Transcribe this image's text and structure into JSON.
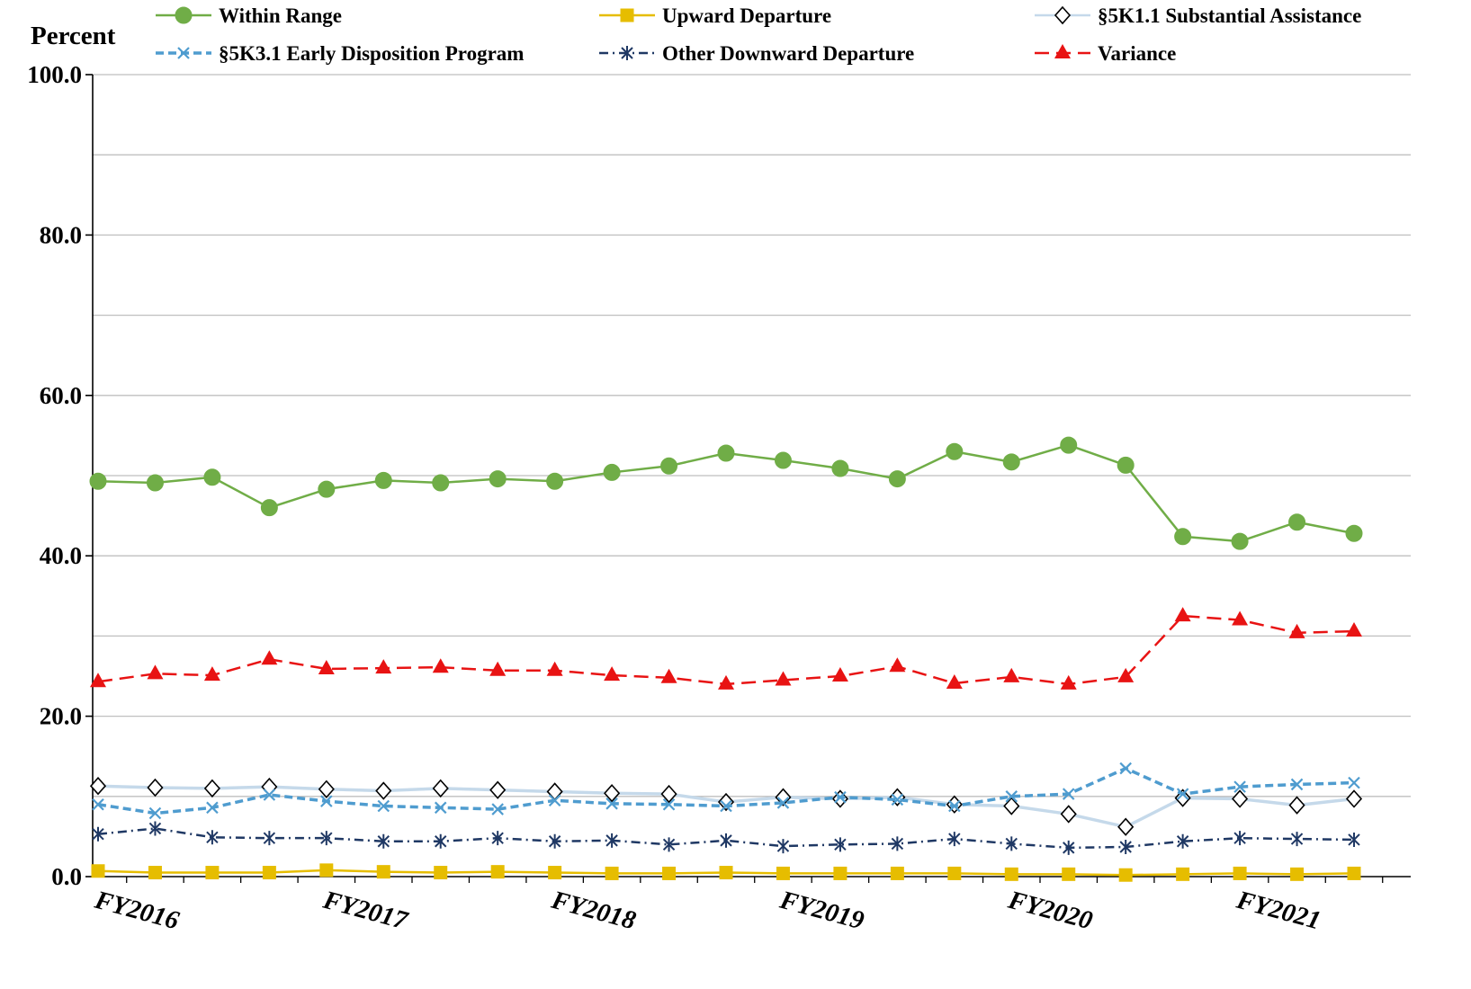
{
  "chart_data": {
    "type": "line",
    "ylabel": "Percent",
    "xlabel": "",
    "title": "",
    "ylim": [
      0,
      100
    ],
    "yticks": [
      0,
      20,
      40,
      60,
      80,
      100
    ],
    "ytick_labels": [
      "0.0",
      "20.0",
      "40.0",
      "60.0",
      "80.0",
      "100.0"
    ],
    "xtick_labels": [
      "FY2016",
      "FY2017",
      "FY2018",
      "FY2019",
      "FY2020",
      "FY2021"
    ],
    "xtick_positions": [
      0,
      4,
      8,
      12,
      16,
      20
    ],
    "grid": true,
    "legend_position": "top",
    "series": [
      {
        "name": "Within Range",
        "color": "#70ad47",
        "line_style": "solid",
        "marker": "circle",
        "values": [
          49.3,
          49.1,
          49.8,
          46.0,
          48.3,
          49.4,
          49.1,
          49.6,
          49.3,
          50.4,
          51.2,
          52.8,
          51.9,
          50.9,
          49.6,
          53.0,
          51.7,
          53.8,
          51.3,
          42.4,
          41.8,
          44.2,
          42.8
        ]
      },
      {
        "name": "Upward Departure",
        "color": "#e6bd00",
        "line_style": "solid",
        "marker": "square",
        "values": [
          0.7,
          0.5,
          0.5,
          0.5,
          0.8,
          0.6,
          0.5,
          0.6,
          0.5,
          0.4,
          0.4,
          0.5,
          0.4,
          0.4,
          0.4,
          0.4,
          0.3,
          0.3,
          0.2,
          0.3,
          0.4,
          0.3,
          0.4
        ]
      },
      {
        "name": "§5K1.1 Substantial Assistance",
        "color": "#c5d9ea",
        "line_style": "solid",
        "marker": "diamond",
        "values": [
          11.3,
          11.1,
          11.0,
          11.2,
          10.9,
          10.7,
          11.0,
          10.8,
          10.6,
          10.4,
          10.3,
          9.3,
          9.9,
          9.7,
          9.9,
          9.0,
          8.8,
          7.8,
          6.2,
          9.8,
          9.7,
          8.9,
          9.7
        ]
      },
      {
        "name": "§5K3.1 Early Disposition Program",
        "color": "#4f9ccf",
        "line_style": "dashed",
        "marker": "x",
        "values": [
          9.0,
          7.9,
          8.6,
          10.2,
          9.4,
          8.8,
          8.6,
          8.4,
          9.5,
          9.1,
          9.0,
          8.8,
          9.2,
          9.9,
          9.6,
          8.8,
          10.0,
          10.3,
          13.5,
          10.3,
          11.2,
          11.5,
          11.7
        ]
      },
      {
        "name": "Other Downward Departure",
        "color": "#1f3864",
        "line_style": "dashdot",
        "marker": "asterisk",
        "values": [
          5.3,
          6.0,
          4.9,
          4.8,
          4.8,
          4.4,
          4.4,
          4.8,
          4.4,
          4.5,
          4.0,
          4.5,
          3.8,
          4.0,
          4.1,
          4.7,
          4.1,
          3.6,
          3.7,
          4.4,
          4.8,
          4.7,
          4.6
        ]
      },
      {
        "name": "Variance",
        "color": "#e81313",
        "line_style": "longdash",
        "marker": "triangle",
        "values": [
          24.3,
          25.3,
          25.1,
          27.1,
          25.9,
          26.0,
          26.1,
          25.7,
          25.7,
          25.1,
          24.8,
          24.0,
          24.5,
          25.0,
          26.2,
          24.1,
          24.9,
          24.0,
          24.9,
          32.5,
          32.0,
          30.4,
          30.6
        ]
      }
    ]
  }
}
